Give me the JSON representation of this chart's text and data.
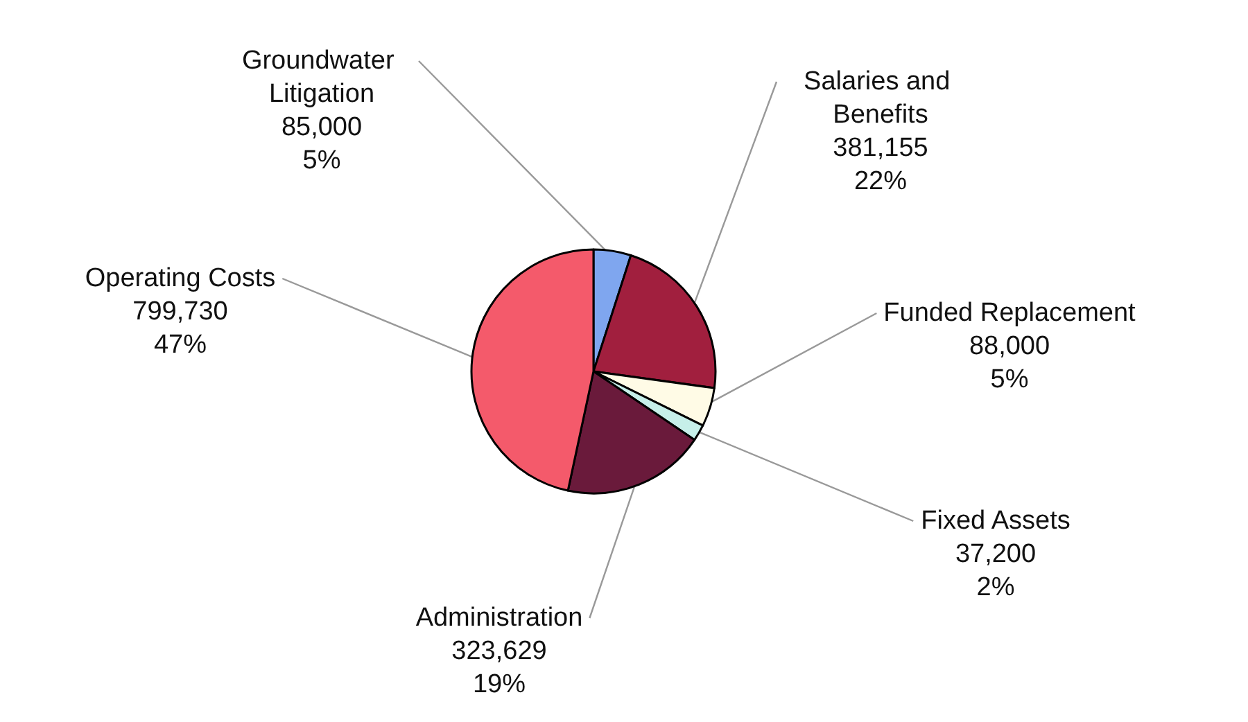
{
  "chart_data": {
    "type": "pie",
    "categories": [
      "Groundwater Litigation",
      "Salaries and Benefits",
      "Funded Replacement",
      "Fixed Assets",
      "Administration",
      "Operating Costs"
    ],
    "values": [
      85000,
      381155,
      88000,
      37200,
      323629,
      799730
    ],
    "value_labels": [
      "85,000\n5%",
      "381,155\n22%",
      "88,000\n5%",
      "37,200\n2%",
      "323,629\n19%",
      "799,730\n47%"
    ],
    "colors": [
      "#7fa6ef",
      "#a11f3e",
      "#fffbe6",
      "#c6efe9",
      "#6a1a3b",
      "#f45a6b"
    ],
    "legend": false
  }
}
